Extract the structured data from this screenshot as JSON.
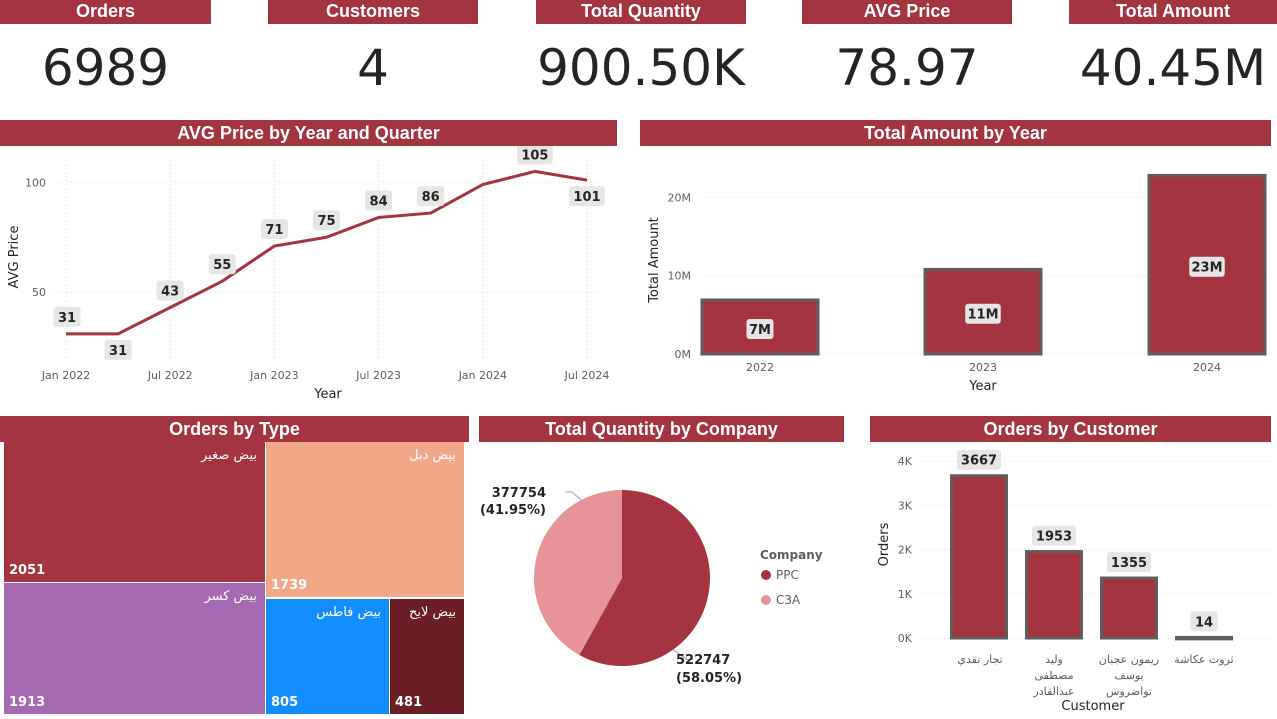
{
  "kpis": [
    {
      "label": "Orders",
      "value": "6989"
    },
    {
      "label": "Customers",
      "value": "4"
    },
    {
      "label": "Total Quantity",
      "value": "900.50K"
    },
    {
      "label": "AVG Price",
      "value": "78.97"
    },
    {
      "label": "Total Amount",
      "value": "40.45M"
    }
  ],
  "colors": {
    "accent": "#a4343f",
    "dark": "#6b1f25",
    "pie_light": "#e69399",
    "peach": "#f0a888",
    "purple": "#a66ab3",
    "blue": "#118dff"
  },
  "chart_data": [
    {
      "type": "line",
      "title": "AVG Price by Year and Quarter",
      "xlabel": "Year",
      "ylabel": "AVG Price",
      "x": [
        "2022-Q1",
        "2022-Q2",
        "2022-Q3",
        "2022-Q4",
        "2023-Q1",
        "2023-Q2",
        "2023-Q3",
        "2023-Q4",
        "2024-Q1",
        "2024-Q2",
        "2024-Q3"
      ],
      "values": [
        31,
        31,
        43,
        55,
        71,
        75,
        84,
        86,
        99,
        105,
        101
      ],
      "data_labels": [
        "31",
        "31",
        "43",
        "55",
        "71",
        "75",
        "84",
        "86",
        "",
        "105",
        "101"
      ],
      "x_ticks": [
        "Jan 2022",
        "Jul 2022",
        "Jan 2023",
        "Jul 2023",
        "Jan 2024",
        "Jul 2024"
      ],
      "y_ticks": [
        "50",
        "100"
      ],
      "ylim": [
        20,
        112
      ],
      "grid": true
    },
    {
      "type": "bar",
      "title": "Total Amount by Year",
      "xlabel": "Year",
      "ylabel": "Total Amount",
      "categories": [
        "2022",
        "2023",
        "2024"
      ],
      "values": [
        6.9,
        10.8,
        22.8
      ],
      "data_labels": [
        "7M",
        "11M",
        "23M"
      ],
      "y_ticks": [
        "0M",
        "10M",
        "20M"
      ],
      "ylim": [
        0,
        24
      ],
      "grid": true
    },
    {
      "type": "treemap",
      "title": "Orders by Type",
      "items": [
        {
          "name": "بيض صغير",
          "value": 2051
        },
        {
          "name": "بيض دبل",
          "value": 1739
        },
        {
          "name": "بيض كسر",
          "value": 1913
        },
        {
          "name": "بيض فاطس",
          "value": 805
        },
        {
          "name": "بيض لايح",
          "value": 481
        }
      ]
    },
    {
      "type": "pie",
      "title": "Total Quantity by Company",
      "legend_title": "Company",
      "legend_position": "right",
      "slices": [
        {
          "name": "PPC",
          "value": 522747,
          "label": "522747",
          "pct": "(58.05%)"
        },
        {
          "name": "C3A",
          "value": 377754,
          "label": "377754",
          "pct": "(41.95%)"
        }
      ]
    },
    {
      "type": "bar",
      "title": "Orders by Customer",
      "xlabel": "Customer",
      "ylabel": "Orders",
      "categories": [
        [
          "تجار نقدي"
        ],
        [
          "وليد",
          "مصطفى",
          "عبدالقادر"
        ],
        [
          "ريمون عجبان",
          "يوسف",
          "تواضروس"
        ],
        [
          "ثروت عكاشة"
        ]
      ],
      "values": [
        3667,
        1953,
        1355,
        14
      ],
      "data_labels": [
        "3667",
        "1953",
        "1355",
        "14"
      ],
      "y_ticks": [
        "0K",
        "1K",
        "2K",
        "3K",
        "4K"
      ],
      "ylim": [
        0,
        4000
      ],
      "grid": true
    }
  ]
}
